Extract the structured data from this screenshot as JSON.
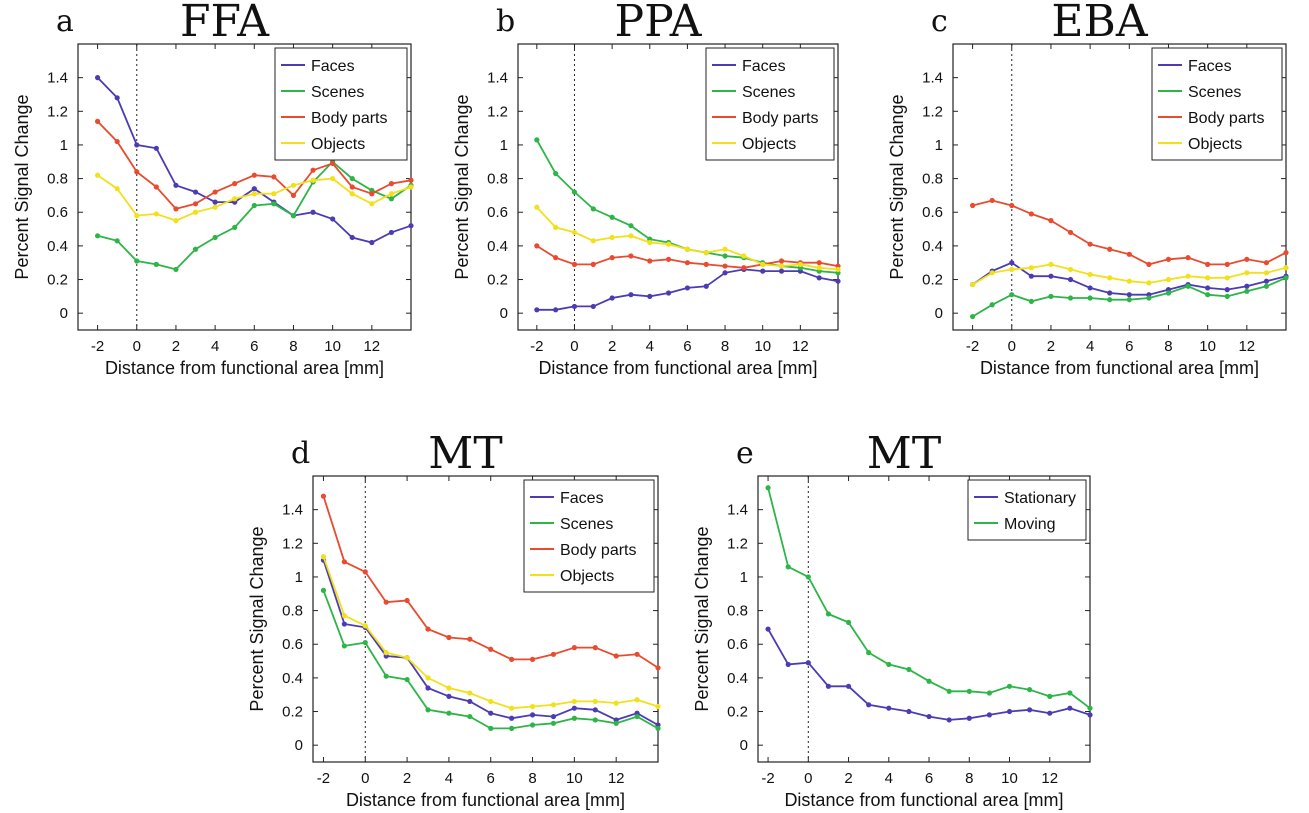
{
  "chart_data": [
    {
      "type": "line",
      "panel": "a",
      "title": "FFA",
      "xlabel": "Distance from functional area [mm]",
      "ylabel": "Percent Signal Change",
      "xlim": [
        -3,
        14
      ],
      "ylim": [
        -0.1,
        1.6
      ],
      "xticks": [
        -2,
        0,
        2,
        4,
        6,
        8,
        10,
        12
      ],
      "yticks": [
        0,
        0.2,
        0.4,
        0.6,
        0.8,
        1,
        1.2,
        1.4
      ],
      "vline_x": 0,
      "legend": "top-right",
      "x": [
        -2,
        -1,
        0,
        1,
        2,
        3,
        4,
        5,
        6,
        7,
        8,
        9,
        10,
        11,
        12,
        13,
        14
      ],
      "series": [
        {
          "name": "Faces",
          "color": "#4b3cb4",
          "values": [
            1.4,
            1.28,
            1.0,
            0.98,
            0.76,
            0.72,
            0.66,
            0.66,
            0.74,
            0.66,
            0.58,
            0.6,
            0.56,
            0.45,
            0.42,
            0.48,
            0.52
          ]
        },
        {
          "name": "Scenes",
          "color": "#2db548",
          "values": [
            0.46,
            0.43,
            0.31,
            0.29,
            0.26,
            0.38,
            0.45,
            0.51,
            0.64,
            0.65,
            0.58,
            0.78,
            0.9,
            0.8,
            0.73,
            0.68,
            0.76
          ]
        },
        {
          "name": "Body parts",
          "color": "#e84b2e",
          "values": [
            1.14,
            1.02,
            0.84,
            0.75,
            0.62,
            0.65,
            0.72,
            0.77,
            0.82,
            0.81,
            0.7,
            0.85,
            0.89,
            0.75,
            0.71,
            0.77,
            0.79
          ]
        },
        {
          "name": "Objects",
          "color": "#f2e01b",
          "values": [
            0.82,
            0.74,
            0.58,
            0.59,
            0.55,
            0.6,
            0.63,
            0.68,
            0.71,
            0.71,
            0.76,
            0.79,
            0.8,
            0.71,
            0.65,
            0.71,
            0.75
          ]
        }
      ]
    },
    {
      "type": "line",
      "panel": "b",
      "title": "PPA",
      "xlabel": "Distance from functional area [mm]",
      "ylabel": "Percent Signal Change",
      "xlim": [
        -3,
        14
      ],
      "ylim": [
        -0.1,
        1.6
      ],
      "xticks": [
        -2,
        0,
        2,
        4,
        6,
        8,
        10,
        12
      ],
      "yticks": [
        0,
        0.2,
        0.4,
        0.6,
        0.8,
        1,
        1.2,
        1.4
      ],
      "vline_x": 0,
      "legend": "top-right",
      "x": [
        -2,
        -1,
        0,
        1,
        2,
        3,
        4,
        5,
        6,
        7,
        8,
        9,
        10,
        11,
        12,
        13,
        14
      ],
      "series": [
        {
          "name": "Faces",
          "color": "#4b3cb4",
          "values": [
            0.02,
            0.02,
            0.04,
            0.04,
            0.09,
            0.11,
            0.1,
            0.12,
            0.15,
            0.16,
            0.24,
            0.26,
            0.25,
            0.25,
            0.25,
            0.21,
            0.19
          ]
        },
        {
          "name": "Scenes",
          "color": "#2db548",
          "values": [
            1.03,
            0.83,
            0.72,
            0.62,
            0.57,
            0.52,
            0.44,
            0.42,
            0.38,
            0.36,
            0.34,
            0.33,
            0.3,
            0.28,
            0.27,
            0.25,
            0.24
          ]
        },
        {
          "name": "Body parts",
          "color": "#e84b2e",
          "values": [
            0.4,
            0.33,
            0.29,
            0.29,
            0.33,
            0.34,
            0.31,
            0.32,
            0.3,
            0.29,
            0.28,
            0.27,
            0.29,
            0.31,
            0.3,
            0.3,
            0.28
          ]
        },
        {
          "name": "Objects",
          "color": "#f2e01b",
          "values": [
            0.63,
            0.51,
            0.48,
            0.43,
            0.45,
            0.46,
            0.42,
            0.41,
            0.38,
            0.36,
            0.38,
            0.34,
            0.29,
            0.28,
            0.29,
            0.27,
            0.26
          ]
        }
      ]
    },
    {
      "type": "line",
      "panel": "c",
      "title": "EBA",
      "xlabel": "Distance from functional area [mm]",
      "ylabel": "Percent Signal Change",
      "xlim": [
        -3,
        14
      ],
      "ylim": [
        -0.1,
        1.6
      ],
      "xticks": [
        -2,
        0,
        2,
        4,
        6,
        8,
        10,
        12
      ],
      "yticks": [
        0,
        0.2,
        0.4,
        0.6,
        0.8,
        1,
        1.2,
        1.4
      ],
      "vline_x": 0,
      "legend": "top-right",
      "x": [
        -2,
        -1,
        0,
        1,
        2,
        3,
        4,
        5,
        6,
        7,
        8,
        9,
        10,
        11,
        12,
        13,
        14
      ],
      "series": [
        {
          "name": "Faces",
          "color": "#4b3cb4",
          "values": [
            0.17,
            0.25,
            0.3,
            0.22,
            0.22,
            0.2,
            0.15,
            0.12,
            0.11,
            0.11,
            0.14,
            0.17,
            0.15,
            0.14,
            0.16,
            0.19,
            0.22
          ]
        },
        {
          "name": "Scenes",
          "color": "#2db548",
          "values": [
            -0.02,
            0.05,
            0.11,
            0.07,
            0.1,
            0.09,
            0.09,
            0.08,
            0.08,
            0.09,
            0.12,
            0.16,
            0.11,
            0.1,
            0.13,
            0.16,
            0.21
          ]
        },
        {
          "name": "Body parts",
          "color": "#e84b2e",
          "values": [
            0.64,
            0.67,
            0.64,
            0.59,
            0.55,
            0.48,
            0.41,
            0.38,
            0.35,
            0.29,
            0.32,
            0.33,
            0.29,
            0.29,
            0.32,
            0.3,
            0.36
          ]
        },
        {
          "name": "Objects",
          "color": "#f2e01b",
          "values": [
            0.17,
            0.24,
            0.26,
            0.27,
            0.29,
            0.26,
            0.23,
            0.21,
            0.19,
            0.18,
            0.2,
            0.22,
            0.21,
            0.21,
            0.24,
            0.24,
            0.27
          ]
        }
      ]
    },
    {
      "type": "line",
      "panel": "d",
      "title": "MT",
      "xlabel": "Distance from functional area [mm]",
      "ylabel": "Percent Signal Change",
      "xlim": [
        -2.5,
        14
      ],
      "ylim": [
        -0.1,
        1.6
      ],
      "xticks": [
        -2,
        0,
        2,
        4,
        6,
        8,
        10,
        12
      ],
      "yticks": [
        0,
        0.2,
        0.4,
        0.6,
        0.8,
        1,
        1.2,
        1.4
      ],
      "vline_x": 0,
      "legend": "top-right",
      "x": [
        -2,
        -1,
        0,
        1,
        2,
        3,
        4,
        5,
        6,
        7,
        8,
        9,
        10,
        11,
        12,
        13,
        14
      ],
      "series": [
        {
          "name": "Faces",
          "color": "#4b3cb4",
          "values": [
            1.1,
            0.72,
            0.7,
            0.53,
            0.52,
            0.34,
            0.29,
            0.26,
            0.19,
            0.16,
            0.18,
            0.17,
            0.22,
            0.21,
            0.15,
            0.19,
            0.12
          ]
        },
        {
          "name": "Scenes",
          "color": "#2db548",
          "values": [
            0.92,
            0.59,
            0.61,
            0.41,
            0.39,
            0.21,
            0.19,
            0.17,
            0.1,
            0.1,
            0.12,
            0.13,
            0.16,
            0.15,
            0.13,
            0.17,
            0.1
          ]
        },
        {
          "name": "Body parts",
          "color": "#e84b2e",
          "values": [
            1.48,
            1.09,
            1.03,
            0.85,
            0.86,
            0.69,
            0.64,
            0.63,
            0.57,
            0.51,
            0.51,
            0.54,
            0.58,
            0.58,
            0.53,
            0.54,
            0.46
          ]
        },
        {
          "name": "Objects",
          "color": "#f2e01b",
          "values": [
            1.12,
            0.77,
            0.71,
            0.55,
            0.52,
            0.4,
            0.34,
            0.31,
            0.26,
            0.22,
            0.23,
            0.24,
            0.26,
            0.26,
            0.25,
            0.27,
            0.23
          ]
        }
      ]
    },
    {
      "type": "line",
      "panel": "e",
      "title": "MT",
      "xlabel": "Distance from functional area [mm]",
      "ylabel": "Percent Signal Change",
      "xlim": [
        -2.5,
        14
      ],
      "ylim": [
        -0.1,
        1.6
      ],
      "xticks": [
        -2,
        0,
        2,
        4,
        6,
        8,
        10,
        12
      ],
      "yticks": [
        0,
        0.2,
        0.4,
        0.6,
        0.8,
        1,
        1.2,
        1.4
      ],
      "vline_x": 0,
      "legend": "top-right",
      "x": [
        -2,
        -1,
        0,
        1,
        2,
        3,
        4,
        5,
        6,
        7,
        8,
        9,
        10,
        11,
        12,
        13,
        14
      ],
      "series": [
        {
          "name": "Stationary",
          "color": "#4b3cb4",
          "values": [
            0.69,
            0.48,
            0.49,
            0.35,
            0.35,
            0.24,
            0.22,
            0.2,
            0.17,
            0.15,
            0.16,
            0.18,
            0.2,
            0.21,
            0.19,
            0.22,
            0.18
          ]
        },
        {
          "name": "Moving",
          "color": "#2db548",
          "values": [
            1.53,
            1.06,
            1.0,
            0.78,
            0.73,
            0.55,
            0.48,
            0.45,
            0.38,
            0.32,
            0.32,
            0.31,
            0.35,
            0.33,
            0.29,
            0.31,
            0.22
          ]
        }
      ]
    }
  ]
}
